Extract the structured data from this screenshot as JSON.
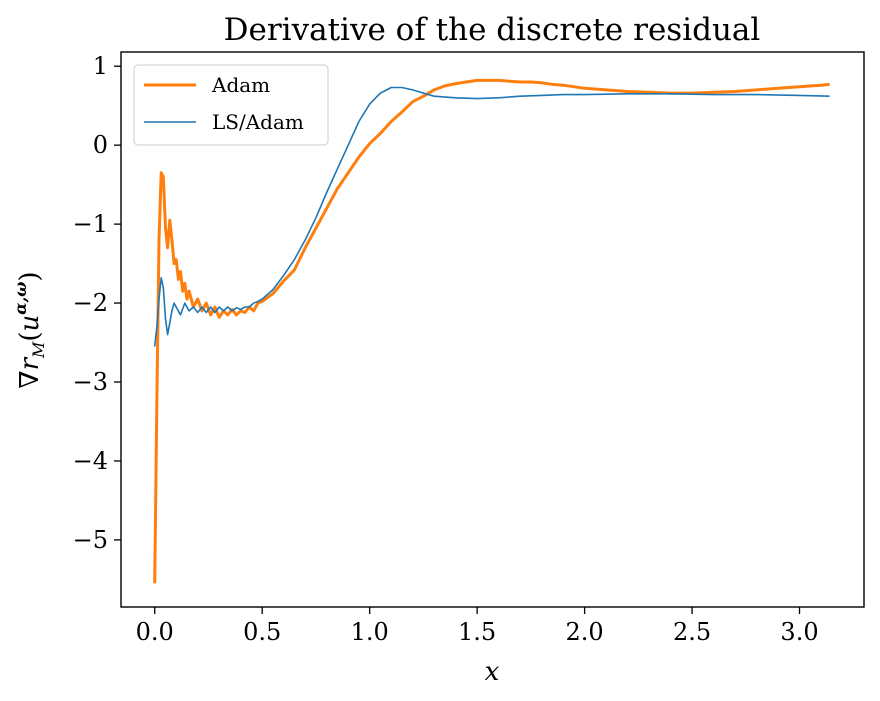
{
  "chart_data": {
    "type": "line",
    "title": "Derivative of the discrete residual",
    "xlabel": "x",
    "ylabel": "∇r_M(u^{α,ω})",
    "xlim": [
      -0.157,
      3.3
    ],
    "ylim": [
      -5.85,
      1.18
    ],
    "xticks": [
      0.0,
      0.5,
      1.0,
      1.5,
      2.0,
      2.5,
      3.0
    ],
    "xtick_labels": [
      "0.0",
      "0.5",
      "1.0",
      "1.5",
      "2.0",
      "2.5",
      "3.0"
    ],
    "yticks": [
      1,
      0,
      -1,
      -2,
      -3,
      -4,
      -5
    ],
    "ytick_labels": [
      "1",
      "0",
      "−1",
      "−2",
      "−3",
      "−4",
      "−5"
    ],
    "grid": false,
    "legend_position": "upper-left",
    "series": [
      {
        "name": "Adam",
        "color": "#ff7f0e",
        "x": [
          0.0,
          0.01,
          0.02,
          0.03,
          0.04,
          0.05,
          0.06,
          0.07,
          0.08,
          0.09,
          0.1,
          0.11,
          0.12,
          0.13,
          0.14,
          0.15,
          0.16,
          0.18,
          0.2,
          0.22,
          0.24,
          0.26,
          0.28,
          0.3,
          0.32,
          0.34,
          0.36,
          0.38,
          0.4,
          0.42,
          0.44,
          0.46,
          0.48,
          0.5,
          0.55,
          0.6,
          0.65,
          0.7,
          0.75,
          0.8,
          0.85,
          0.9,
          0.95,
          1.0,
          1.05,
          1.1,
          1.15,
          1.2,
          1.25,
          1.3,
          1.35,
          1.4,
          1.45,
          1.5,
          1.55,
          1.6,
          1.65,
          1.7,
          1.75,
          1.8,
          1.85,
          1.9,
          1.95,
          2.0,
          2.1,
          2.2,
          2.3,
          2.4,
          2.5,
          2.6,
          2.7,
          2.8,
          2.9,
          3.0,
          3.1,
          3.14
        ],
        "y": [
          -5.55,
          -3.2,
          -1.2,
          -0.35,
          -0.4,
          -1.05,
          -1.3,
          -0.95,
          -1.2,
          -1.5,
          -1.45,
          -1.7,
          -1.6,
          -1.85,
          -1.75,
          -1.95,
          -1.85,
          -2.05,
          -1.95,
          -2.1,
          -2.0,
          -2.15,
          -2.05,
          -2.18,
          -2.1,
          -2.15,
          -2.08,
          -2.15,
          -2.1,
          -2.12,
          -2.05,
          -2.1,
          -2.0,
          -1.98,
          -1.88,
          -1.72,
          -1.58,
          -1.3,
          -1.05,
          -0.8,
          -0.55,
          -0.35,
          -0.15,
          0.02,
          0.15,
          0.3,
          0.42,
          0.55,
          0.62,
          0.7,
          0.75,
          0.78,
          0.8,
          0.82,
          0.82,
          0.82,
          0.81,
          0.8,
          0.8,
          0.79,
          0.77,
          0.76,
          0.74,
          0.72,
          0.7,
          0.68,
          0.67,
          0.66,
          0.66,
          0.67,
          0.68,
          0.7,
          0.72,
          0.74,
          0.76,
          0.77
        ]
      },
      {
        "name": "LS/Adam",
        "color": "#1f77b4",
        "x": [
          0.0,
          0.01,
          0.02,
          0.03,
          0.04,
          0.05,
          0.06,
          0.07,
          0.08,
          0.09,
          0.1,
          0.12,
          0.14,
          0.16,
          0.18,
          0.2,
          0.22,
          0.24,
          0.26,
          0.28,
          0.3,
          0.32,
          0.34,
          0.36,
          0.38,
          0.4,
          0.42,
          0.44,
          0.46,
          0.48,
          0.5,
          0.55,
          0.6,
          0.65,
          0.7,
          0.75,
          0.8,
          0.85,
          0.9,
          0.95,
          1.0,
          1.05,
          1.1,
          1.15,
          1.2,
          1.25,
          1.3,
          1.4,
          1.5,
          1.6,
          1.7,
          1.8,
          1.9,
          2.0,
          2.2,
          2.4,
          2.6,
          2.8,
          3.0,
          3.14
        ],
        "y": [
          -2.55,
          -2.3,
          -1.95,
          -1.68,
          -1.8,
          -2.2,
          -2.4,
          -2.25,
          -2.1,
          -2.0,
          -2.05,
          -2.15,
          -2.0,
          -2.1,
          -2.05,
          -2.12,
          -2.05,
          -2.12,
          -2.05,
          -2.12,
          -2.05,
          -2.1,
          -2.05,
          -2.1,
          -2.06,
          -2.08,
          -2.05,
          -2.05,
          -2.0,
          -1.98,
          -1.95,
          -1.83,
          -1.65,
          -1.45,
          -1.2,
          -0.92,
          -0.6,
          -0.3,
          0.0,
          0.3,
          0.52,
          0.66,
          0.73,
          0.73,
          0.7,
          0.66,
          0.62,
          0.6,
          0.59,
          0.6,
          0.62,
          0.63,
          0.64,
          0.64,
          0.65,
          0.65,
          0.64,
          0.64,
          0.63,
          0.62
        ]
      }
    ]
  }
}
